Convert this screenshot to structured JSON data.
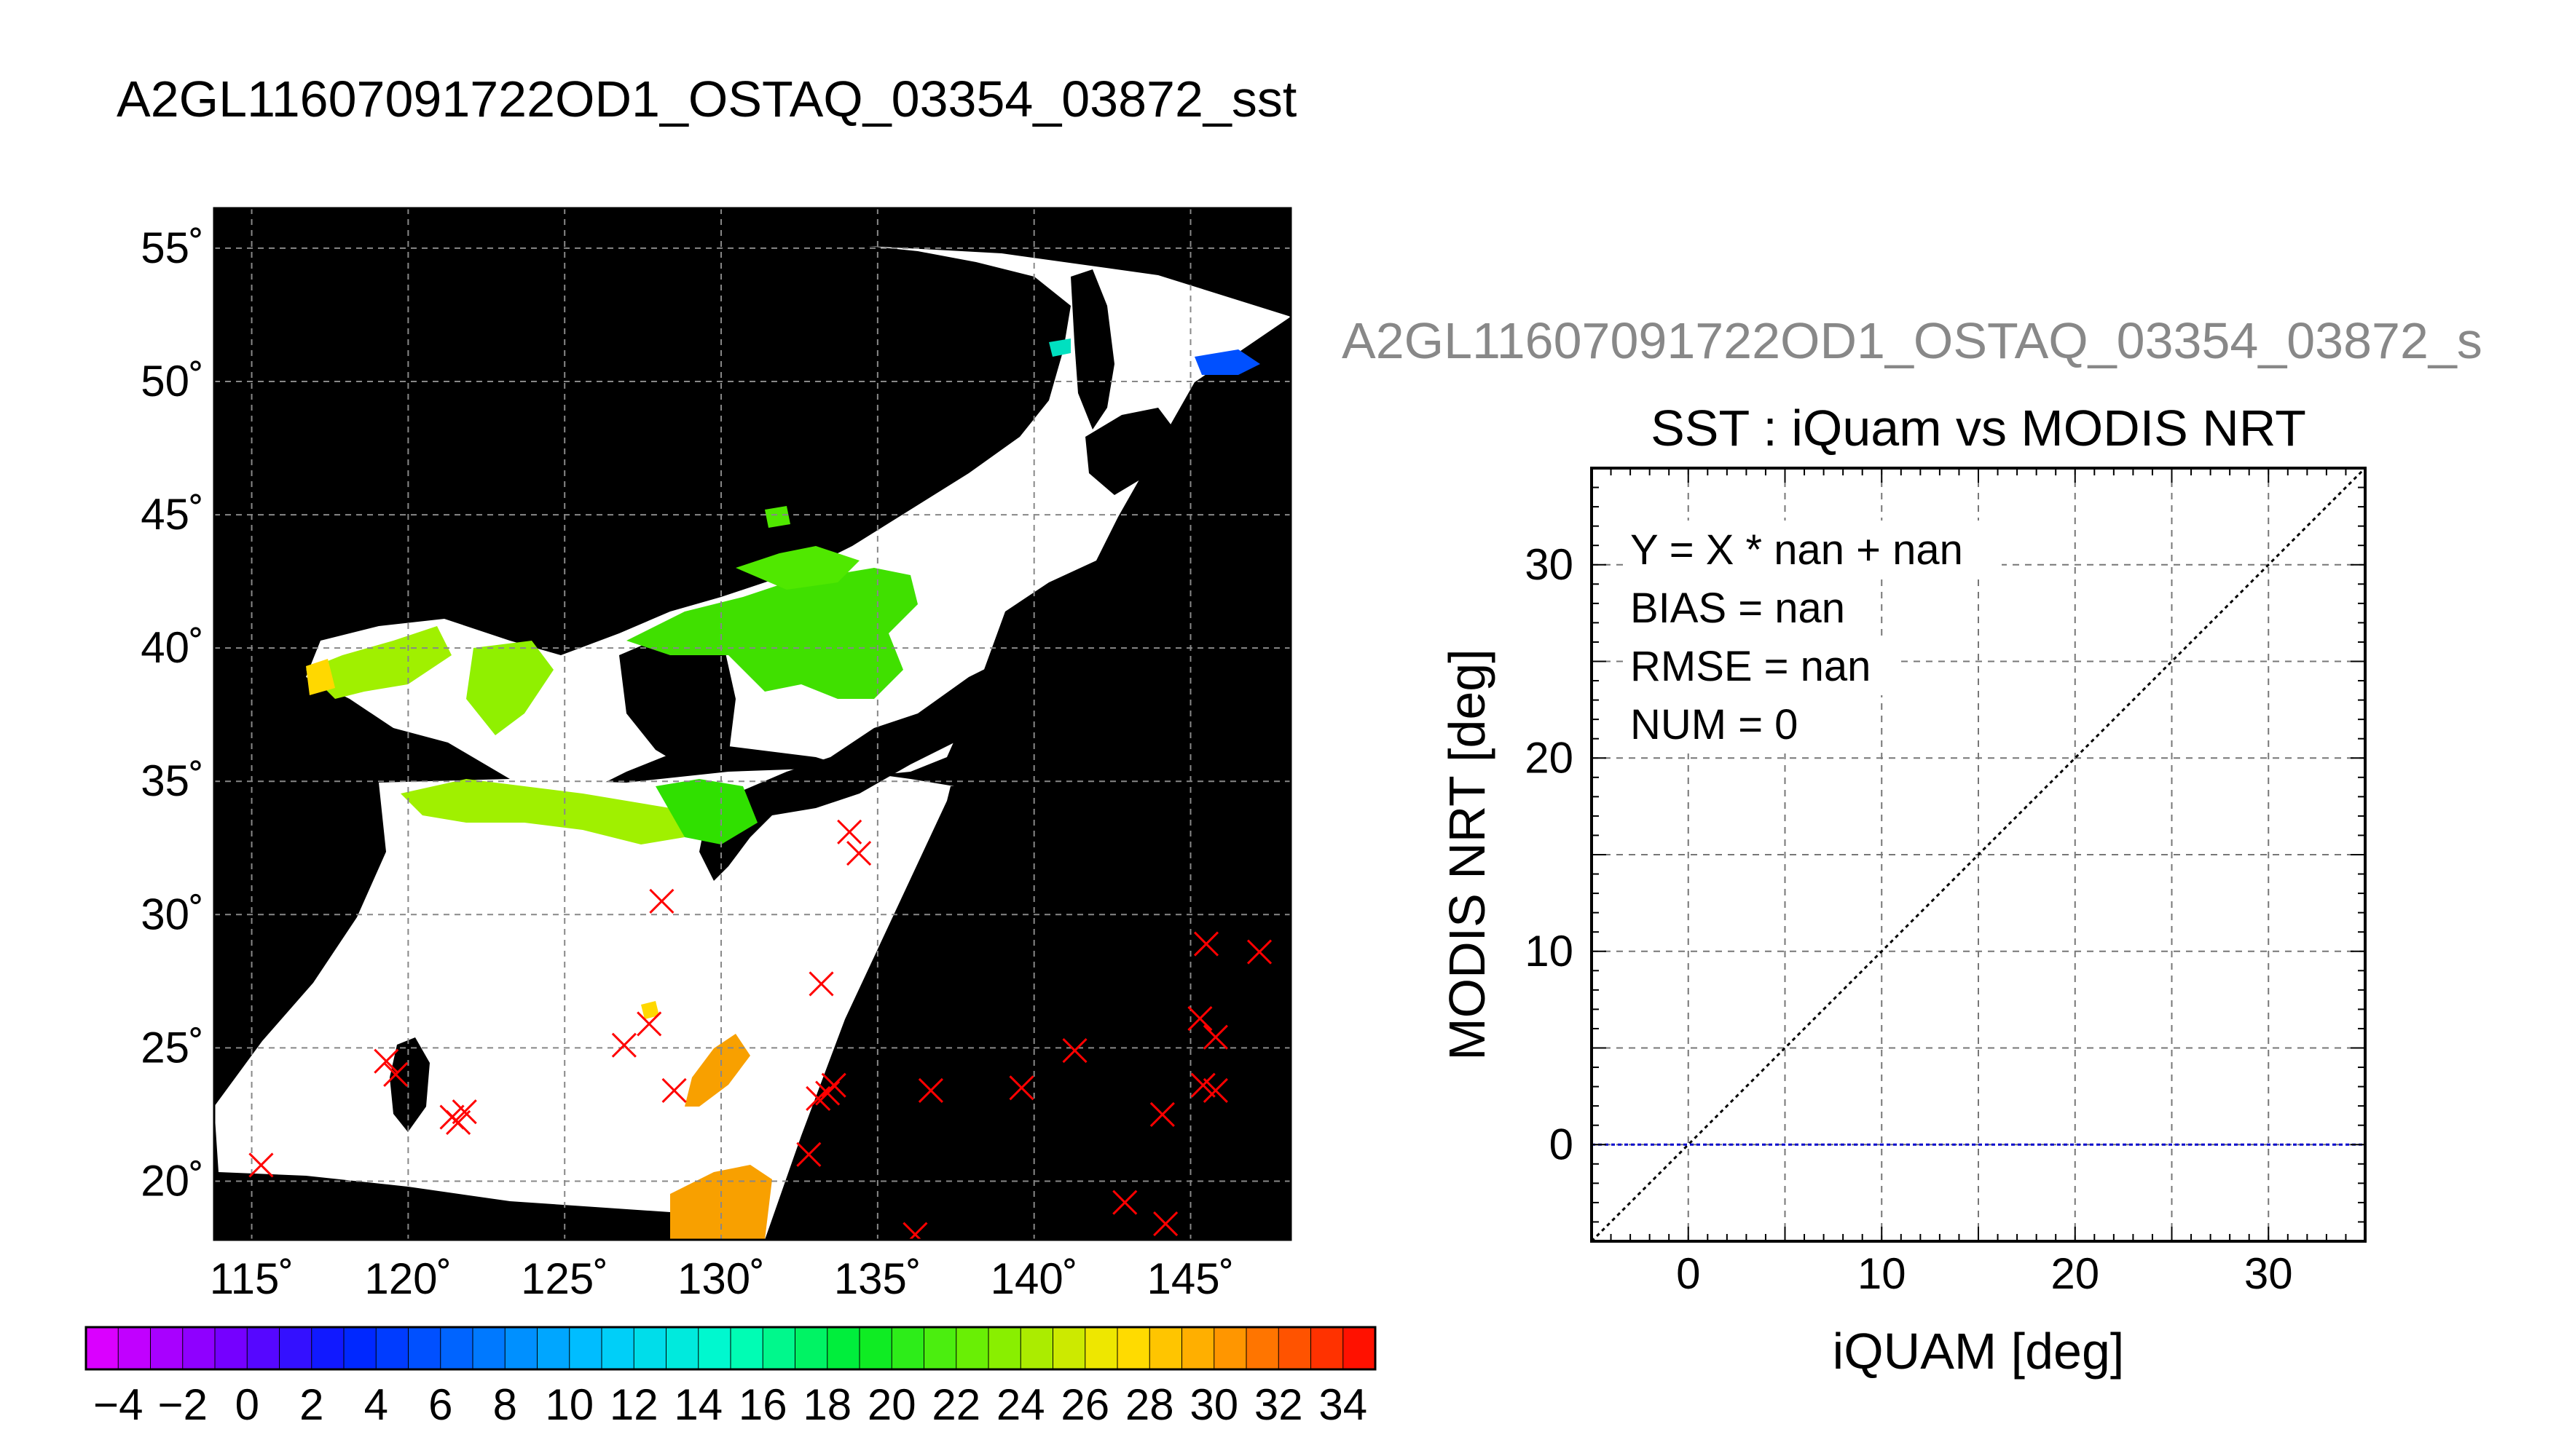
{
  "map_panel": {
    "title": "A2GL11607091722OD1_OSTAQ_03354_03872_sst",
    "lon_labels": [
      "115˚",
      "120˚",
      "125˚",
      "130˚",
      "135˚",
      "140˚",
      "145˚"
    ],
    "lat_labels": [
      "55˚",
      "50˚",
      "45˚",
      "40˚",
      "35˚",
      "30˚",
      "25˚",
      "20˚"
    ],
    "colors": {
      "land": "#000000",
      "no_data": "#ffffff",
      "marker": "#ff0000",
      "grid": "#888888"
    }
  },
  "colorbar": {
    "tick_labels": [
      "−4",
      "−2",
      "0",
      "2",
      "4",
      "6",
      "8",
      "10",
      "12",
      "14",
      "16",
      "18",
      "20",
      "22",
      "24",
      "26",
      "28",
      "30",
      "32",
      "34"
    ],
    "range": [
      -5,
      35
    ],
    "step": 2
  },
  "scatter_panel": {
    "file_label": "A2GL11607091722OD1_OSTAQ_03354_03872_s",
    "title": "SST : iQuam vs MODIS NRT",
    "xlabel": "iQUAM [deg]",
    "ylabel": "MODIS NRT [deg]",
    "stats": [
      "Y = X * nan + nan",
      "BIAS = nan",
      "RMSE = nan",
      "NUM = 0"
    ]
  },
  "chart_data": [
    {
      "type": "scatter",
      "subtype": "map",
      "title": "A2GL11607091722OD1_OSTAQ_03354_03872_sst",
      "xlim": [
        113.8,
        148.2
      ],
      "ylim": [
        17.8,
        56.5
      ],
      "x_ticks": [
        115,
        120,
        125,
        130,
        135,
        140,
        145
      ],
      "y_ticks": [
        20,
        25,
        30,
        35,
        40,
        45,
        50,
        55
      ],
      "grid": true,
      "series": [
        {
          "marker": "x",
          "points": [
            [
              115.3,
              20.6
            ],
            [
              119.3,
              24.5
            ],
            [
              119.6,
              24.0
            ],
            [
              121.4,
              22.4
            ],
            [
              121.8,
              22.6
            ],
            [
              121.6,
              22.2
            ],
            [
              126.9,
              25.1
            ],
            [
              127.7,
              25.9
            ],
            [
              128.1,
              30.5
            ],
            [
              128.5,
              23.4
            ],
            [
              132.8,
              21.0
            ],
            [
              133.2,
              27.4
            ],
            [
              133.1,
              23.1
            ],
            [
              133.4,
              23.3
            ],
            [
              133.6,
              23.6
            ],
            [
              134.1,
              33.1
            ],
            [
              134.4,
              32.3
            ],
            [
              136.2,
              18.0
            ],
            [
              136.7,
              23.4
            ],
            [
              139.6,
              23.5
            ],
            [
              141.3,
              24.9
            ],
            [
              142.9,
              19.2
            ],
            [
              144.1,
              22.5
            ],
            [
              144.2,
              18.4
            ],
            [
              145.3,
              26.1
            ],
            [
              145.5,
              28.9
            ],
            [
              145.8,
              25.4
            ],
            [
              145.8,
              23.4
            ],
            [
              147.2,
              28.6
            ],
            [
              145.4,
              23.6
            ]
          ]
        }
      ]
    },
    {
      "type": "scatter",
      "title": "SST : iQuam vs MODIS NRT",
      "xlabel": "iQUAM [deg]",
      "ylabel": "MODIS NRT [deg]",
      "xlim": [
        -5,
        35
      ],
      "ylim": [
        -5,
        35
      ],
      "x_ticks": [
        0,
        10,
        20,
        30
      ],
      "y_ticks": [
        0,
        10,
        20,
        30
      ],
      "grid": true,
      "lines": [
        {
          "kind": "identity",
          "points": [
            [
              -5,
              -5
            ],
            [
              35,
              35
            ]
          ]
        },
        {
          "kind": "fit",
          "points": [
            [
              -5,
              0
            ],
            [
              35,
              0
            ]
          ]
        }
      ],
      "points": []
    }
  ]
}
